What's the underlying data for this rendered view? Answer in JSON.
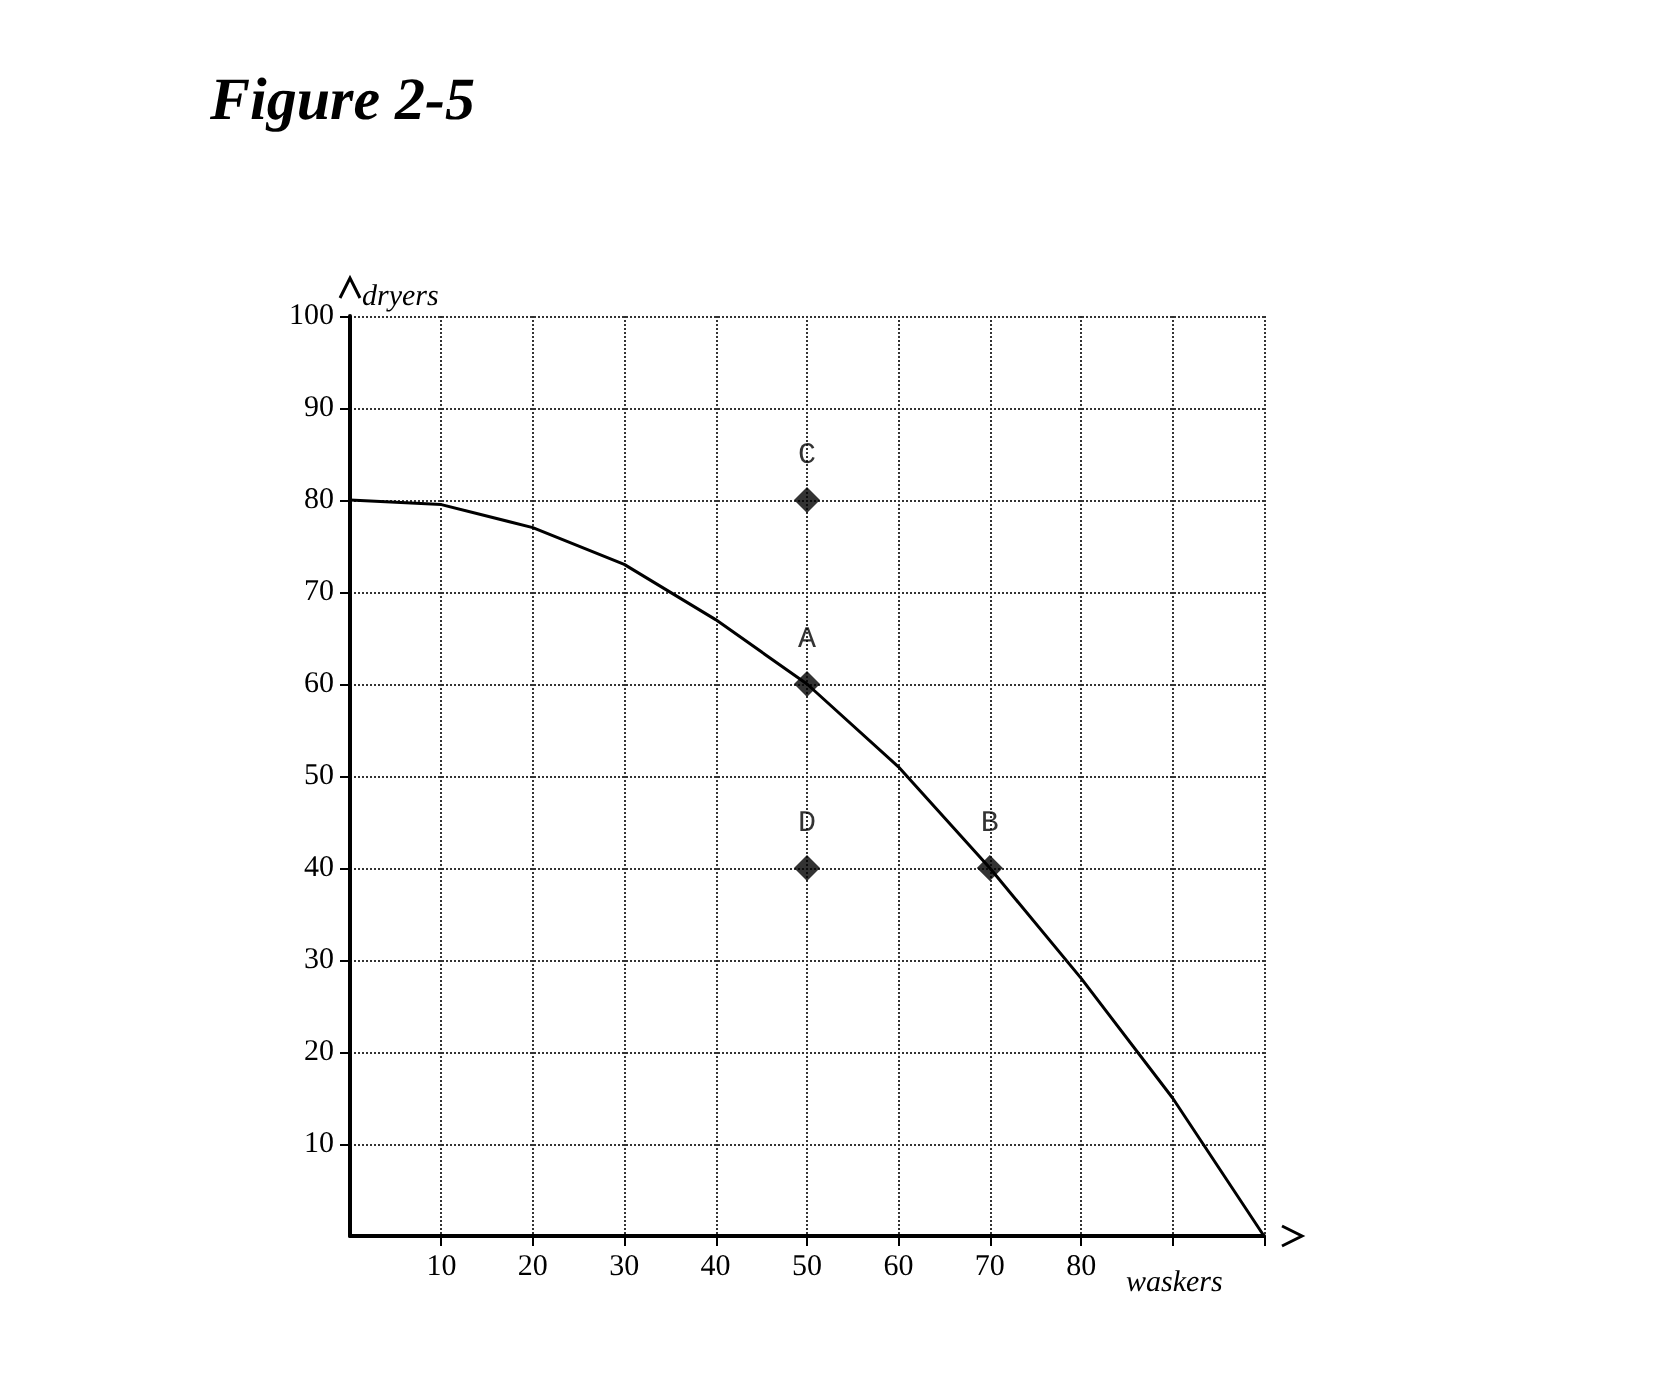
{
  "chart_data": {
    "type": "line",
    "title": "Figure 2-5",
    "xlabel": "waskers",
    "ylabel": "dryers",
    "xlim": [
      0,
      100
    ],
    "ylim": [
      0,
      100
    ],
    "xticks": [
      10,
      20,
      30,
      40,
      50,
      60,
      70,
      80,
      {
        "value": 90,
        "label": null
      },
      {
        "value": 100,
        "label": null
      }
    ],
    "yticks": [
      10,
      20,
      30,
      40,
      50,
      60,
      70,
      80,
      90,
      100
    ],
    "grid": true,
    "series": [
      {
        "color": "#000000",
        "marker": "none",
        "line_style": "solid",
        "x": [
          0,
          10,
          20,
          30,
          40,
          50,
          60,
          70,
          80,
          90,
          100
        ],
        "values": [
          80,
          79.5,
          77,
          73,
          67,
          60,
          51,
          40,
          28,
          15,
          0
        ]
      },
      {
        "type": "scatter",
        "color": "#000000",
        "marker": "diamond",
        "x": [
          50,
          50,
          50,
          70
        ],
        "values": [
          80,
          60,
          40,
          40
        ],
        "value_labels": [
          "C",
          "A",
          "D",
          "B"
        ]
      }
    ]
  }
}
